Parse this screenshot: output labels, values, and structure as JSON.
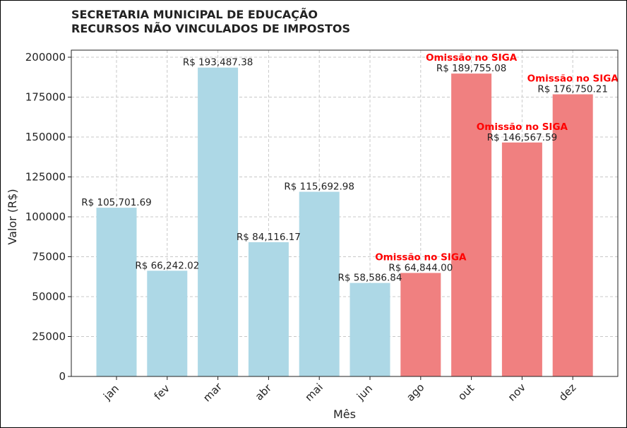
{
  "chart_data": {
    "type": "bar",
    "title": [
      "SECRETARIA MUNICIPAL DE EDUCAÇÃO",
      "RECURSOS NÃO VINCULADOS DE IMPOSTOS"
    ],
    "xlabel": "Mês",
    "ylabel": "Valor (R$)",
    "categories": [
      "jan",
      "fev",
      "mar",
      "abr",
      "mai",
      "jun",
      "ago",
      "out",
      "nov",
      "dez"
    ],
    "values": [
      105701.69,
      66242.02,
      193487.38,
      84116.17,
      115692.98,
      58586.84,
      64844.0,
      189755.08,
      146567.59,
      176750.21
    ],
    "data_labels": [
      "R$ 105,701.69",
      "R$ 66,242.02",
      "R$ 193,487.38",
      "R$ 84,116.17",
      "R$ 115,692.98",
      "R$ 58,586.84",
      "R$ 64,844.00",
      "R$ 189,755.08",
      "R$ 146,567.59",
      "R$ 176,750.21"
    ],
    "flagged": [
      false,
      false,
      false,
      false,
      false,
      false,
      true,
      true,
      true,
      true
    ],
    "annotation": "Omissão no SIGA",
    "ylim": [
      0,
      200000
    ],
    "yticks": [
      0,
      25000,
      50000,
      75000,
      100000,
      125000,
      150000,
      175000,
      200000
    ],
    "grid": true,
    "colors": {
      "normal": "#add8e6",
      "flagged": "#f08080",
      "annotation": "#ff0000"
    }
  }
}
